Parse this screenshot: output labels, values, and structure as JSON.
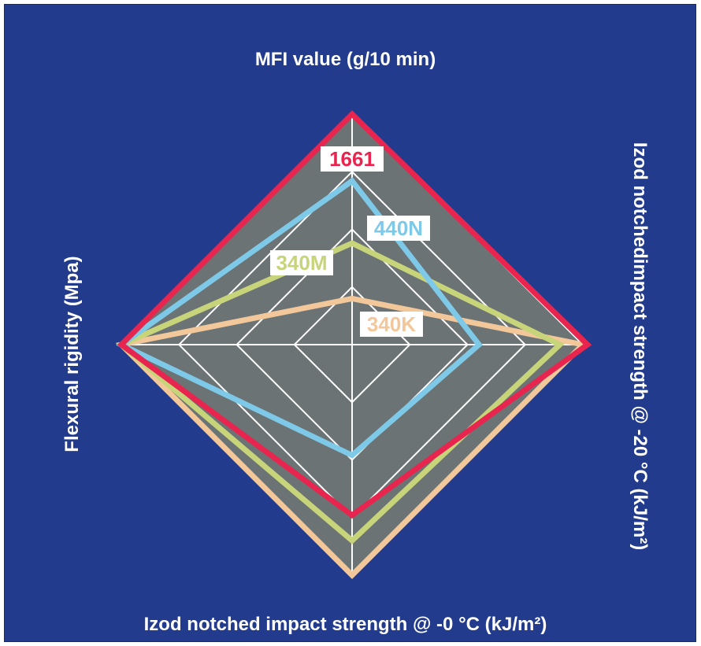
{
  "chart_data": {
    "type": "radar",
    "axes": [
      "MFI value (g/10 min)",
      "Izod notchedimpact strength @ -20 °C (kJ/m²)",
      "Izod notched impact strength @ -0 °C (kJ/m²)",
      "Flexural rigidity (Mpa)"
    ],
    "axis_order": [
      "top",
      "right",
      "bottom",
      "left"
    ],
    "rings": 4,
    "grid": true,
    "series": [
      {
        "name": "340K",
        "color": "#f2c79a",
        "values": [
          0.2,
          1.0,
          1.0,
          1.0
        ]
      },
      {
        "name": "340M",
        "color": "#c8d47a",
        "values": [
          0.44,
          0.9,
          0.85,
          1.0
        ]
      },
      {
        "name": "440N",
        "color": "#7ec8e8",
        "values": [
          0.71,
          0.55,
          0.48,
          1.0
        ]
      },
      {
        "name": "1661",
        "color": "#e8254e",
        "values": [
          1.0,
          1.02,
          0.74,
          1.0
        ]
      }
    ]
  },
  "colors": {
    "background": "#233b8c",
    "plot_fill": "#6b7374",
    "grid": "#ffffff"
  }
}
